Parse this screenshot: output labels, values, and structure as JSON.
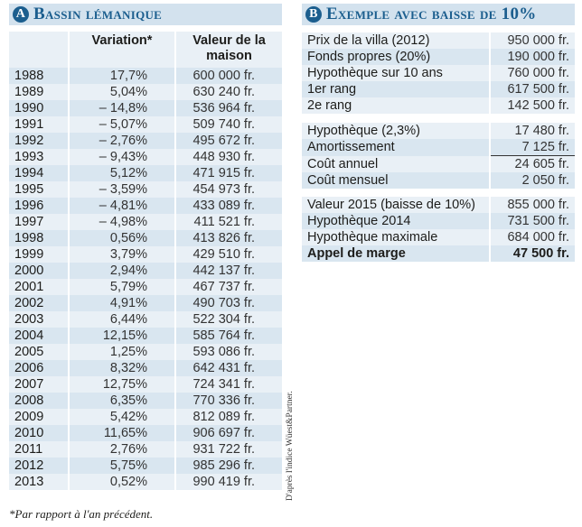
{
  "section_a": {
    "badge": "A",
    "title": "Bassin lémanique",
    "headers": [
      "",
      "Variation*",
      "Valeur de la maison"
    ],
    "rows": [
      [
        "1988",
        "17,7%",
        "600 000 fr."
      ],
      [
        "1989",
        "5,04%",
        "630 240 fr."
      ],
      [
        "1990",
        "– 14,8%",
        "536 964 fr."
      ],
      [
        "1991",
        "– 5,07%",
        "509 740 fr."
      ],
      [
        "1992",
        "– 2,76%",
        "495 672 fr."
      ],
      [
        "1993",
        "– 9,43%",
        "448 930 fr."
      ],
      [
        "1994",
        "5,12%",
        "471 915 fr."
      ],
      [
        "1995",
        "– 3,59%",
        "454 973 fr."
      ],
      [
        "1996",
        "– 4,81%",
        "433 089 fr."
      ],
      [
        "1997",
        "– 4,98%",
        "411 521 fr."
      ],
      [
        "1998",
        "0,56%",
        "413 826 fr."
      ],
      [
        "1999",
        "3,79%",
        "429 510 fr."
      ],
      [
        "2000",
        "2,94%",
        "442 137 fr."
      ],
      [
        "2001",
        "5,79%",
        "467 737 fr."
      ],
      [
        "2002",
        "4,91%",
        "490 703 fr."
      ],
      [
        "2003",
        "6,44%",
        "522 304 fr."
      ],
      [
        "2004",
        "12,15%",
        "585 764 fr."
      ],
      [
        "2005",
        "1,25%",
        "593 086 fr."
      ],
      [
        "2006",
        "8,32%",
        "642 431 fr."
      ],
      [
        "2007",
        "12,75%",
        "724 341 fr."
      ],
      [
        "2008",
        "6,35%",
        "770 336 fr."
      ],
      [
        "2009",
        "5,42%",
        "812 089 fr."
      ],
      [
        "2010",
        "11,65%",
        "906 697 fr."
      ],
      [
        "2011",
        "2,76%",
        "931 722 fr."
      ],
      [
        "2012",
        "5,75%",
        "985 296 fr."
      ],
      [
        "2013",
        "0,52%",
        "990 419 fr."
      ]
    ],
    "footnote": "*Par rapport à l'an précédent.",
    "source": "D'après l'indice Wüest&Partner."
  },
  "section_b": {
    "badge": "B",
    "title": "Exemple avec baisse de 10%",
    "groups": [
      [
        [
          "Prix de la villa (2012)",
          "950 000 fr."
        ],
        [
          "Fonds propres (20%)",
          "190 000 fr."
        ],
        [
          "Hypothèque sur 10 ans",
          "760 000 fr."
        ],
        [
          "1er rang",
          "617 500 fr."
        ],
        [
          "2e rang",
          "142 500 fr."
        ]
      ],
      [
        [
          "Hypothèque (2,3%)",
          "17 480 fr."
        ],
        [
          "Amortissement",
          "7 125 fr."
        ],
        [
          "Coût annuel",
          "24 605 fr."
        ],
        [
          "Coût mensuel",
          "2 050 fr."
        ]
      ],
      [
        [
          "Valeur 2015 (baisse de 10%)",
          "855 000 fr."
        ],
        [
          "Hypothèque 2014",
          "731 500 fr."
        ],
        [
          "Hypothèque maximale",
          "684 000 fr."
        ],
        [
          "Appel de marge",
          "47 500 fr."
        ]
      ]
    ]
  },
  "colors": {
    "accent": "#1b5e8e",
    "header_bg": "#d3e2ee",
    "row_dark": "#d9e6f0",
    "row_light": "#e9f0f6"
  }
}
